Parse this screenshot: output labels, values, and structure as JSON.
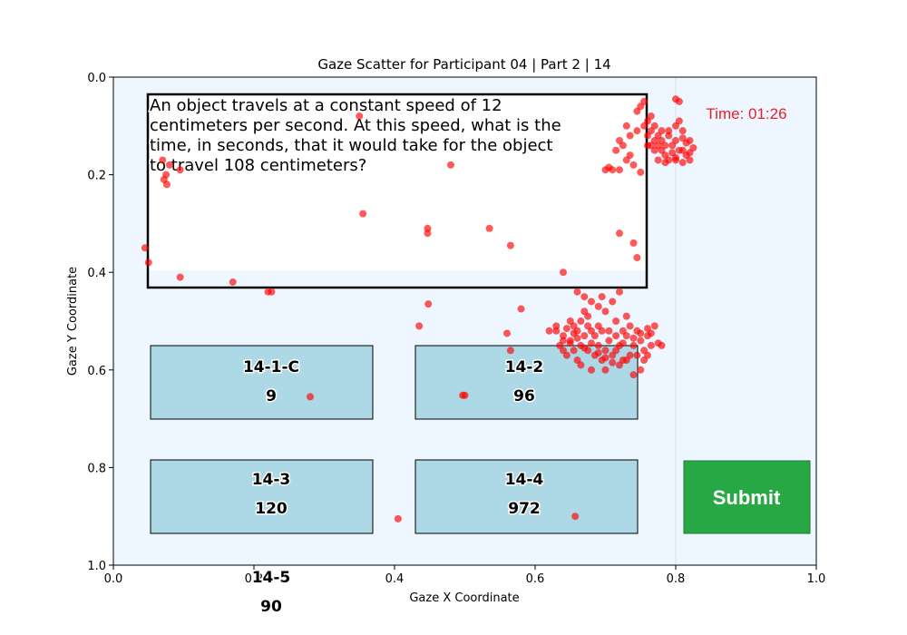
{
  "chart_data": {
    "type": "scatter",
    "title": "Gaze Scatter for Participant 04 | Part 2 | 14",
    "xlabel": "Gaze X Coordinate",
    "ylabel": "Gaze Y Coordinate",
    "xlim": [
      0,
      1
    ],
    "ylim": [
      1,
      0
    ],
    "y_inverted": true,
    "x_ticks": [
      "0.0",
      "0.2",
      "0.4",
      "0.6",
      "0.8",
      "1.0"
    ],
    "y_ticks": [
      "0.0",
      "0.2",
      "0.4",
      "0.6",
      "0.8",
      "1.0"
    ],
    "point_color": "#ff0000",
    "points": [
      [
        0.045,
        0.35
      ],
      [
        0.05,
        0.38
      ],
      [
        0.07,
        0.17
      ],
      [
        0.075,
        0.2
      ],
      [
        0.072,
        0.21
      ],
      [
        0.076,
        0.22
      ],
      [
        0.08,
        0.18
      ],
      [
        0.095,
        0.19
      ],
      [
        0.095,
        0.41
      ],
      [
        0.17,
        0.42
      ],
      [
        0.22,
        0.44
      ],
      [
        0.225,
        0.44
      ],
      [
        0.35,
        0.08
      ],
      [
        0.355,
        0.28
      ],
      [
        0.48,
        0.18
      ],
      [
        0.447,
        0.31
      ],
      [
        0.447,
        0.32
      ],
      [
        0.535,
        0.31
      ],
      [
        0.565,
        0.345
      ],
      [
        0.435,
        0.51
      ],
      [
        0.448,
        0.465
      ],
      [
        0.58,
        0.475
      ],
      [
        0.56,
        0.525
      ],
      [
        0.565,
        0.56
      ],
      [
        0.497,
        0.652
      ],
      [
        0.5,
        0.652
      ],
      [
        0.28,
        0.655
      ],
      [
        0.64,
        0.4
      ],
      [
        0.72,
        0.32
      ],
      [
        0.74,
        0.34
      ],
      [
        0.745,
        0.37
      ],
      [
        0.405,
        0.905
      ],
      [
        0.657,
        0.9
      ],
      [
        0.7,
        0.19
      ],
      [
        0.705,
        0.185
      ],
      [
        0.72,
        0.19
      ],
      [
        0.715,
        0.15
      ],
      [
        0.72,
        0.13
      ],
      [
        0.73,
        0.17
      ],
      [
        0.735,
        0.16
      ],
      [
        0.74,
        0.18
      ],
      [
        0.75,
        0.195
      ],
      [
        0.755,
        0.1
      ],
      [
        0.76,
        0.12
      ],
      [
        0.765,
        0.11
      ],
      [
        0.77,
        0.13
      ],
      [
        0.775,
        0.14
      ],
      [
        0.78,
        0.15
      ],
      [
        0.785,
        0.16
      ],
      [
        0.79,
        0.12
      ],
      [
        0.795,
        0.14
      ],
      [
        0.8,
        0.13
      ],
      [
        0.805,
        0.15
      ],
      [
        0.81,
        0.11
      ],
      [
        0.815,
        0.16
      ],
      [
        0.82,
        0.13
      ],
      [
        0.78,
        0.11
      ],
      [
        0.79,
        0.17
      ],
      [
        0.8,
        0.17
      ],
      [
        0.77,
        0.15
      ],
      [
        0.76,
        0.14
      ],
      [
        0.75,
        0.06
      ],
      [
        0.745,
        0.07
      ],
      [
        0.755,
        0.05
      ],
      [
        0.76,
        0.09
      ],
      [
        0.765,
        0.08
      ],
      [
        0.77,
        0.1
      ],
      [
        0.775,
        0.12
      ],
      [
        0.78,
        0.13
      ],
      [
        0.8,
        0.1
      ],
      [
        0.805,
        0.09
      ],
      [
        0.81,
        0.15
      ],
      [
        0.765,
        0.14
      ],
      [
        0.775,
        0.17
      ],
      [
        0.785,
        0.14
      ],
      [
        0.795,
        0.155
      ],
      [
        0.81,
        0.125
      ],
      [
        0.815,
        0.135
      ],
      [
        0.82,
        0.155
      ],
      [
        0.825,
        0.145
      ],
      [
        0.8,
        0.045
      ],
      [
        0.805,
        0.05
      ],
      [
        0.73,
        0.1
      ],
      [
        0.735,
        0.12
      ],
      [
        0.725,
        0.14
      ],
      [
        0.71,
        0.19
      ],
      [
        0.745,
        0.11
      ],
      [
        0.79,
        0.11
      ],
      [
        0.8,
        0.165
      ],
      [
        0.785,
        0.175
      ],
      [
        0.81,
        0.175
      ],
      [
        0.82,
        0.17
      ],
      [
        0.62,
        0.52
      ],
      [
        0.63,
        0.51
      ],
      [
        0.64,
        0.53
      ],
      [
        0.645,
        0.515
      ],
      [
        0.65,
        0.54
      ],
      [
        0.655,
        0.51
      ],
      [
        0.66,
        0.52
      ],
      [
        0.665,
        0.55
      ],
      [
        0.67,
        0.53
      ],
      [
        0.675,
        0.56
      ],
      [
        0.68,
        0.52
      ],
      [
        0.685,
        0.57
      ],
      [
        0.69,
        0.55
      ],
      [
        0.695,
        0.58
      ],
      [
        0.7,
        0.56
      ],
      [
        0.705,
        0.54
      ],
      [
        0.71,
        0.57
      ],
      [
        0.715,
        0.56
      ],
      [
        0.72,
        0.55
      ],
      [
        0.725,
        0.58
      ],
      [
        0.73,
        0.53
      ],
      [
        0.735,
        0.57
      ],
      [
        0.74,
        0.55
      ],
      [
        0.745,
        0.52
      ],
      [
        0.75,
        0.54
      ],
      [
        0.755,
        0.56
      ],
      [
        0.76,
        0.53
      ],
      [
        0.765,
        0.55
      ],
      [
        0.77,
        0.51
      ],
      [
        0.775,
        0.545
      ],
      [
        0.78,
        0.55
      ],
      [
        0.67,
        0.48
      ],
      [
        0.675,
        0.49
      ],
      [
        0.68,
        0.46
      ],
      [
        0.69,
        0.47
      ],
      [
        0.695,
        0.45
      ],
      [
        0.7,
        0.48
      ],
      [
        0.71,
        0.46
      ],
      [
        0.715,
        0.5
      ],
      [
        0.72,
        0.44
      ],
      [
        0.73,
        0.49
      ],
      [
        0.66,
        0.44
      ],
      [
        0.67,
        0.45
      ],
      [
        0.65,
        0.5
      ],
      [
        0.655,
        0.56
      ],
      [
        0.66,
        0.58
      ],
      [
        0.665,
        0.59
      ],
      [
        0.68,
        0.6
      ],
      [
        0.7,
        0.6
      ],
      [
        0.72,
        0.59
      ],
      [
        0.74,
        0.61
      ],
      [
        0.75,
        0.6
      ],
      [
        0.645,
        0.57
      ],
      [
        0.64,
        0.56
      ],
      [
        0.69,
        0.51
      ],
      [
        0.705,
        0.52
      ],
      [
        0.715,
        0.53
      ],
      [
        0.725,
        0.545
      ],
      [
        0.735,
        0.51
      ],
      [
        0.685,
        0.53
      ],
      [
        0.695,
        0.52
      ],
      [
        0.675,
        0.51
      ],
      [
        0.665,
        0.5
      ],
      [
        0.655,
        0.525
      ],
      [
        0.745,
        0.57
      ],
      [
        0.755,
        0.58
      ],
      [
        0.76,
        0.57
      ],
      [
        0.73,
        0.58
      ],
      [
        0.71,
        0.585
      ],
      [
        0.7,
        0.575
      ],
      [
        0.69,
        0.565
      ],
      [
        0.68,
        0.545
      ],
      [
        0.67,
        0.555
      ],
      [
        0.66,
        0.535
      ],
      [
        0.65,
        0.545
      ],
      [
        0.64,
        0.54
      ],
      [
        0.635,
        0.55
      ],
      [
        0.63,
        0.52
      ],
      [
        0.725,
        0.52
      ],
      [
        0.74,
        0.535
      ],
      [
        0.75,
        0.525
      ],
      [
        0.76,
        0.515
      ],
      [
        0.765,
        0.525
      ]
    ]
  },
  "question": {
    "lines": [
      "An object travels at a constant speed of 12",
      "centimeters per second. At this speed, what is the",
      "time, in seconds, that it would take for the object",
      "to travel 108 centimeters?"
    ]
  },
  "answers": [
    {
      "id": "14-1-C",
      "value": "9"
    },
    {
      "id": "14-2",
      "value": "96"
    },
    {
      "id": "14-3",
      "value": "120"
    },
    {
      "id": "14-4",
      "value": "972"
    },
    {
      "id": "14-5",
      "value": "90"
    }
  ],
  "timer": "Time: 01:26",
  "submit_label": "Submit",
  "colors": {
    "plot_bg": "#eef7ff",
    "answer_box": "#add8e6",
    "submit": "#28a745",
    "timer": "#e8202a",
    "point": "#ff0000"
  }
}
